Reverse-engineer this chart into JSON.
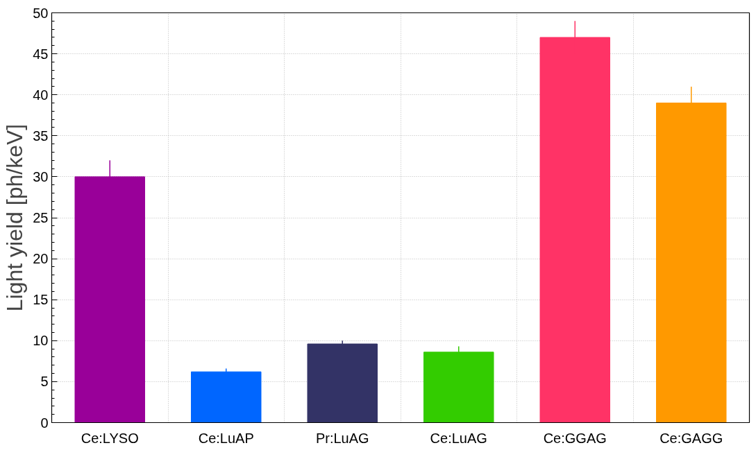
{
  "chart_data": {
    "type": "bar",
    "ylabel": "Light yield [ph/keV]",
    "categories": [
      "Ce:LYSO",
      "Ce:LuAP",
      "Pr:LuAG",
      "Ce:LuAG",
      "Ce:GGAG",
      "Ce:GAGG"
    ],
    "values": [
      30,
      6.2,
      9.6,
      8.6,
      47,
      39
    ],
    "errors": [
      2,
      0.4,
      0.4,
      0.7,
      2,
      2
    ],
    "colors": [
      "#990099",
      "#0066ff",
      "#333366",
      "#33cc00",
      "#ff3366",
      "#ff9900"
    ],
    "ylim": [
      0,
      50
    ],
    "yticks": [
      0,
      5,
      10,
      15,
      20,
      25,
      30,
      35,
      40,
      45,
      50
    ],
    "grid": true
  }
}
